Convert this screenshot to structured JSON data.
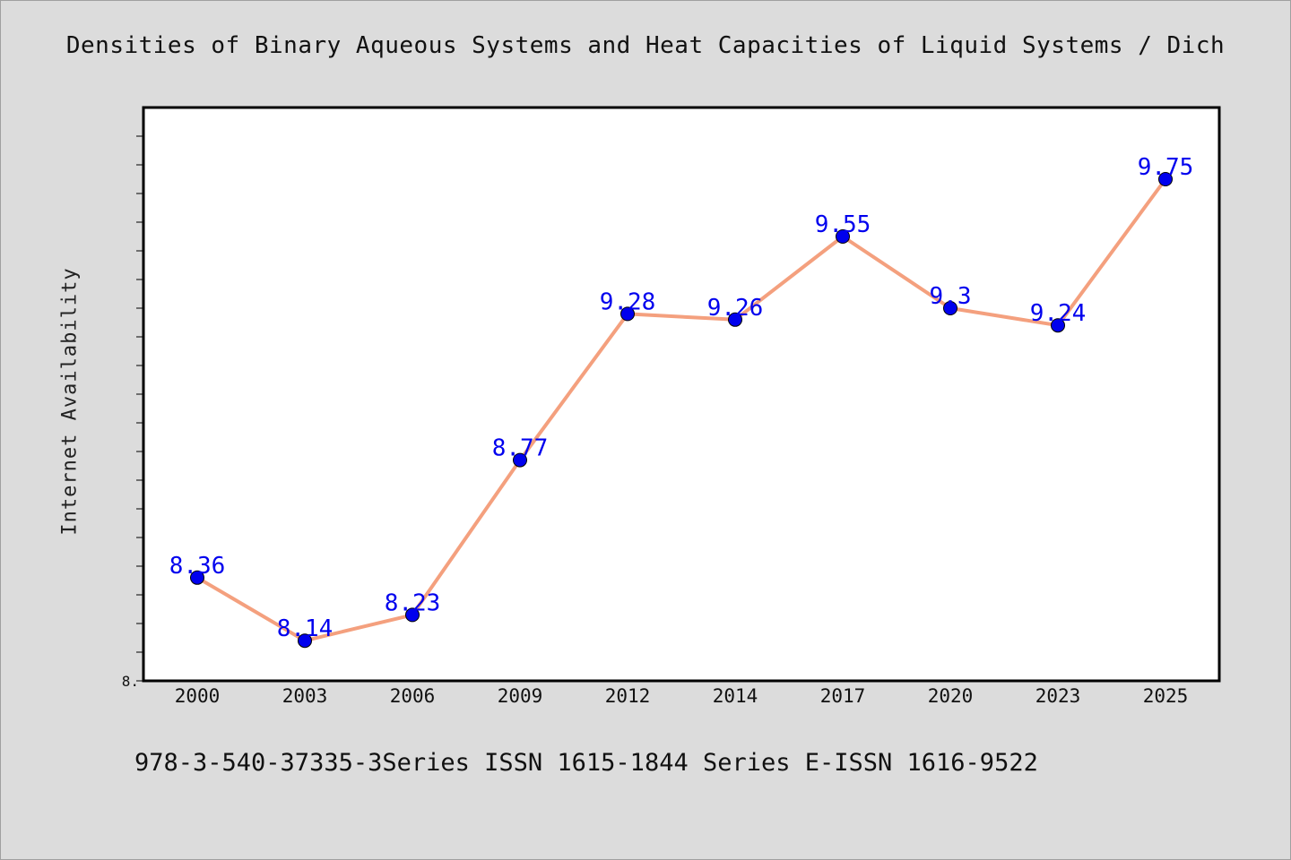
{
  "chart_data": {
    "type": "line",
    "title": "Densities of Binary Aqueous Systems and Heat Capacities of Liquid Systems / Dich",
    "ylabel": "Internet Availability",
    "xlabel": "",
    "categories": [
      "2000",
      "2003",
      "2006",
      "2009",
      "2012",
      "2014",
      "2017",
      "2020",
      "2023",
      "2025"
    ],
    "series": [
      {
        "values": [
          8.36,
          8.14,
          8.23,
          8.77,
          9.28,
          9.26,
          9.55,
          9.3,
          9.24,
          9.75
        ],
        "data_labels": [
          "8.36",
          "8.14",
          "8.23",
          "8.77",
          "9.28",
          "9.26",
          "9.55",
          "9.3",
          "9.24",
          "9.75"
        ],
        "line_color": "#f4a07e",
        "marker_color": "#0000ee",
        "label_color": "#0000ee"
      }
    ],
    "ylim": [
      8.0,
      10.0
    ],
    "y_tick_label": "8.",
    "grid": false,
    "legend": "none"
  },
  "footer": "978-3-540-37335-3Series ISSN 1615-1844 Series E-ISSN 1616-9522"
}
